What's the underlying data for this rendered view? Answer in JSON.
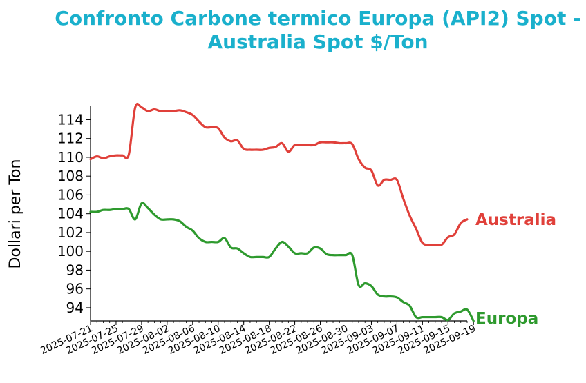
{
  "chart_data": {
    "type": "line",
    "title_lines": [
      "Confronto Carbone termico Europa (API2) Spot -",
      "Australia Spot $/Ton"
    ],
    "ylabel": "Dollari per Ton",
    "xlabel": "",
    "x_start": "2025-07-21",
    "x_ticks": [
      "2025-07-21",
      "2025-07-25",
      "2025-07-29",
      "2025-08-02",
      "2025-08-06",
      "2025-08-10",
      "2025-08-14",
      "2025-08-18",
      "2025-08-22",
      "2025-08-26",
      "2025-08-30",
      "2025-09-03",
      "2025-09-07",
      "2025-09-11",
      "2025-09-15",
      "2025-09-19"
    ],
    "y_ticks": [
      94,
      96,
      98,
      100,
      102,
      104,
      106,
      108,
      110,
      112,
      114
    ],
    "ylim": [
      92.6,
      115.5
    ],
    "xlim": [
      "2025-07-21",
      "2025-09-18"
    ],
    "grid": false,
    "legend": "labels at line ends",
    "series": [
      {
        "name": "Australia",
        "color": "#e0403a",
        "points": [
          [
            "2025-07-21",
            109.8
          ],
          [
            "2025-07-22",
            110.1
          ],
          [
            "2025-07-23",
            109.9
          ],
          [
            "2025-07-24",
            110.1
          ],
          [
            "2025-07-25",
            110.2
          ],
          [
            "2025-07-26",
            110.2
          ],
          [
            "2025-07-27",
            110.3
          ],
          [
            "2025-07-28",
            115.3
          ],
          [
            "2025-07-29",
            115.3
          ],
          [
            "2025-07-30",
            114.9
          ],
          [
            "2025-07-31",
            115.1
          ],
          [
            "2025-08-01",
            114.9
          ],
          [
            "2025-08-02",
            114.9
          ],
          [
            "2025-08-03",
            114.9
          ],
          [
            "2025-08-04",
            115.0
          ],
          [
            "2025-08-05",
            114.8
          ],
          [
            "2025-08-06",
            114.5
          ],
          [
            "2025-08-07",
            113.8
          ],
          [
            "2025-08-08",
            113.2
          ],
          [
            "2025-08-09",
            113.2
          ],
          [
            "2025-08-10",
            113.1
          ],
          [
            "2025-08-11",
            112.1
          ],
          [
            "2025-08-12",
            111.7
          ],
          [
            "2025-08-13",
            111.8
          ],
          [
            "2025-08-14",
            110.9
          ],
          [
            "2025-08-15",
            110.8
          ],
          [
            "2025-08-16",
            110.8
          ],
          [
            "2025-08-17",
            110.8
          ],
          [
            "2025-08-18",
            111.0
          ],
          [
            "2025-08-19",
            111.1
          ],
          [
            "2025-08-20",
            111.5
          ],
          [
            "2025-08-21",
            110.6
          ],
          [
            "2025-08-22",
            111.3
          ],
          [
            "2025-08-23",
            111.3
          ],
          [
            "2025-08-24",
            111.3
          ],
          [
            "2025-08-25",
            111.3
          ],
          [
            "2025-08-26",
            111.6
          ],
          [
            "2025-08-27",
            111.6
          ],
          [
            "2025-08-28",
            111.6
          ],
          [
            "2025-08-29",
            111.5
          ],
          [
            "2025-08-30",
            111.5
          ],
          [
            "2025-08-31",
            111.4
          ],
          [
            "2025-09-01",
            109.8
          ],
          [
            "2025-09-02",
            108.9
          ],
          [
            "2025-09-03",
            108.6
          ],
          [
            "2025-09-04",
            107.0
          ],
          [
            "2025-09-05",
            107.6
          ],
          [
            "2025-09-06",
            107.6
          ],
          [
            "2025-09-07",
            107.6
          ],
          [
            "2025-09-08",
            105.6
          ],
          [
            "2025-09-09",
            103.8
          ],
          [
            "2025-09-10",
            102.4
          ],
          [
            "2025-09-11",
            100.9
          ],
          [
            "2025-09-12",
            100.7
          ],
          [
            "2025-09-13",
            100.7
          ],
          [
            "2025-09-14",
            100.7
          ],
          [
            "2025-09-15",
            101.5
          ],
          [
            "2025-09-16",
            101.8
          ],
          [
            "2025-09-17",
            103.0
          ],
          [
            "2025-09-18",
            103.4
          ]
        ]
      },
      {
        "name": "Europa",
        "color": "#2e9a2e",
        "points": [
          [
            "2025-07-21",
            104.2
          ],
          [
            "2025-07-22",
            104.2
          ],
          [
            "2025-07-23",
            104.4
          ],
          [
            "2025-07-24",
            104.4
          ],
          [
            "2025-07-25",
            104.5
          ],
          [
            "2025-07-26",
            104.5
          ],
          [
            "2025-07-27",
            104.5
          ],
          [
            "2025-07-28",
            103.4
          ],
          [
            "2025-07-29",
            105.1
          ],
          [
            "2025-07-30",
            104.6
          ],
          [
            "2025-07-31",
            103.9
          ],
          [
            "2025-08-01",
            103.4
          ],
          [
            "2025-08-02",
            103.4
          ],
          [
            "2025-08-03",
            103.4
          ],
          [
            "2025-08-04",
            103.2
          ],
          [
            "2025-08-05",
            102.6
          ],
          [
            "2025-08-06",
            102.2
          ],
          [
            "2025-08-07",
            101.4
          ],
          [
            "2025-08-08",
            101.0
          ],
          [
            "2025-08-09",
            101.0
          ],
          [
            "2025-08-10",
            101.0
          ],
          [
            "2025-08-11",
            101.4
          ],
          [
            "2025-08-12",
            100.4
          ],
          [
            "2025-08-13",
            100.3
          ],
          [
            "2025-08-14",
            99.8
          ],
          [
            "2025-08-15",
            99.4
          ],
          [
            "2025-08-16",
            99.4
          ],
          [
            "2025-08-17",
            99.4
          ],
          [
            "2025-08-18",
            99.4
          ],
          [
            "2025-08-19",
            100.3
          ],
          [
            "2025-08-20",
            101.0
          ],
          [
            "2025-08-21",
            100.5
          ],
          [
            "2025-08-22",
            99.8
          ],
          [
            "2025-08-23",
            99.8
          ],
          [
            "2025-08-24",
            99.8
          ],
          [
            "2025-08-25",
            100.4
          ],
          [
            "2025-08-26",
            100.3
          ],
          [
            "2025-08-27",
            99.7
          ],
          [
            "2025-08-28",
            99.6
          ],
          [
            "2025-08-29",
            99.6
          ],
          [
            "2025-08-30",
            99.6
          ],
          [
            "2025-08-31",
            99.6
          ],
          [
            "2025-09-01",
            96.4
          ],
          [
            "2025-09-02",
            96.6
          ],
          [
            "2025-09-03",
            96.3
          ],
          [
            "2025-09-04",
            95.4
          ],
          [
            "2025-09-05",
            95.2
          ],
          [
            "2025-09-06",
            95.2
          ],
          [
            "2025-09-07",
            95.1
          ],
          [
            "2025-09-08",
            94.6
          ],
          [
            "2025-09-09",
            94.2
          ],
          [
            "2025-09-10",
            93.0
          ],
          [
            "2025-09-11",
            93.0
          ],
          [
            "2025-09-12",
            93.0
          ],
          [
            "2025-09-13",
            93.0
          ],
          [
            "2025-09-14",
            93.0
          ],
          [
            "2025-09-15",
            92.7
          ],
          [
            "2025-09-16",
            93.4
          ],
          [
            "2025-09-17",
            93.6
          ],
          [
            "2025-09-18",
            93.8
          ],
          [
            "2025-09-19",
            92.6
          ]
        ]
      }
    ]
  }
}
